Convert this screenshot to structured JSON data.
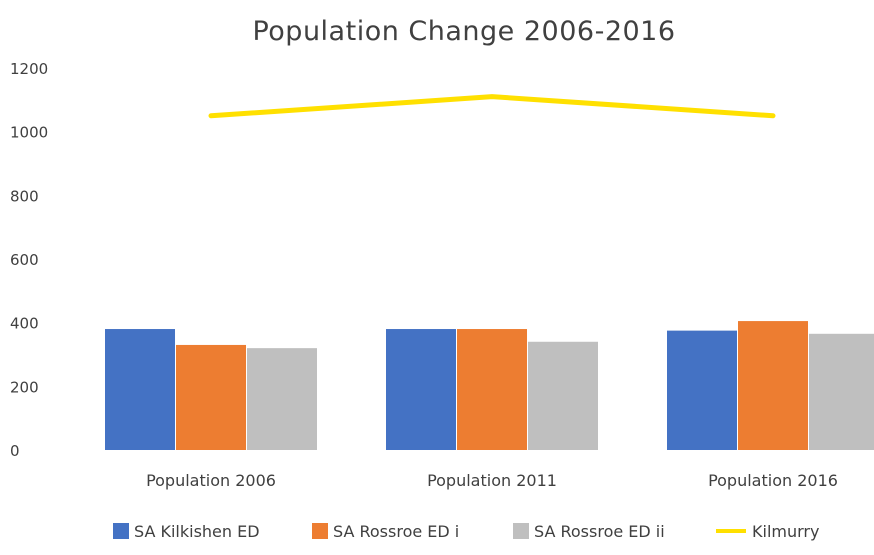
{
  "chart_data": {
    "type": "bar",
    "title": "Population Change 2006-2016",
    "xlabel": "",
    "ylabel": "",
    "ylim": [
      0,
      1200
    ],
    "yticks": [
      "0",
      "200",
      "400",
      "600",
      "800",
      "1000",
      "1200"
    ],
    "categories": [
      "Population 2006",
      "Population 2011",
      "Population 2016"
    ],
    "series": [
      {
        "name": "SA Kilkishen ED",
        "kind": "bar",
        "color": "#4472c4",
        "values": [
          380,
          380,
          375
        ]
      },
      {
        "name": "SA Rossroe ED i",
        "kind": "bar",
        "color": "#ed7d31",
        "values": [
          330,
          380,
          405
        ]
      },
      {
        "name": "SA Rossroe ED ii",
        "kind": "bar",
        "color": "#bfbfbf",
        "values": [
          320,
          340,
          365
        ]
      },
      {
        "name": "Kilmurry",
        "kind": "line",
        "color": "#ffe000",
        "values": [
          1050,
          1110,
          1050
        ]
      }
    ],
    "grid": false,
    "legend": "bottom"
  }
}
